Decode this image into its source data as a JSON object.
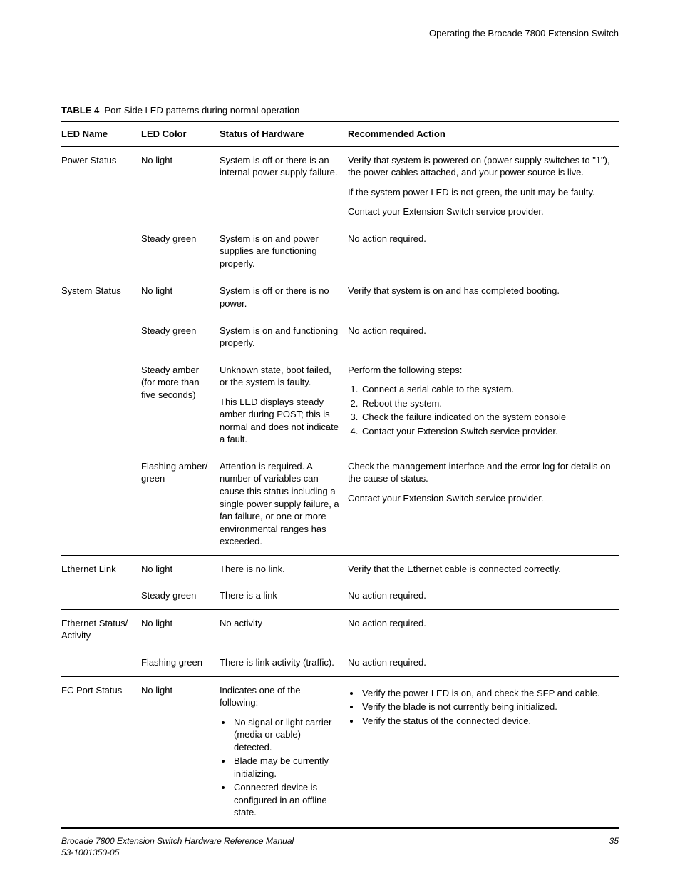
{
  "page": {
    "running_head": "Operating the Brocade 7800 Extension Switch",
    "footer_title": "Brocade 7800 Extension Switch Hardware Reference Manual",
    "footer_doc": "53-1001350-05",
    "page_number": "35"
  },
  "table": {
    "label": "TABLE 4",
    "title": "Port Side LED patterns during normal operation",
    "columns": [
      "LED Name",
      "LED Color",
      "Status of Hardware",
      "Recommended Action"
    ],
    "groups": [
      {
        "led_name": "Power Status",
        "rows": [
          {
            "color": "No light",
            "status_paragraphs": [
              "System is off or there is an internal power supply failure."
            ],
            "action_paragraphs": [
              "Verify that system is powered on (power supply switches to \"1\"), the power cables attached, and your power source is live.",
              "If the system power LED is not green, the unit may be faulty.",
              "Contact your Extension Switch service provider."
            ]
          },
          {
            "color": "Steady green",
            "status_paragraphs": [
              "System is on and power supplies are functioning properly."
            ],
            "action_paragraphs": [
              "No action required."
            ]
          }
        ]
      },
      {
        "led_name": "System Status",
        "rows": [
          {
            "color": "No light",
            "status_paragraphs": [
              "System is off or there is no power."
            ],
            "action_paragraphs": [
              "Verify that system is on and has completed booting."
            ]
          },
          {
            "color": "Steady green",
            "status_paragraphs": [
              "System is on and functioning properly."
            ],
            "action_paragraphs": [
              "No action required."
            ]
          },
          {
            "color": "Steady amber (for more than five seconds)",
            "status_paragraphs": [
              "Unknown state, boot failed, or the system is faulty.",
              "This LED displays steady amber during POST; this is normal and does not indicate a fault."
            ],
            "action_intro": "Perform the following steps:",
            "action_ordered": [
              "Connect a serial cable to the system.",
              "Reboot the system.",
              "Check the failure indicated on the system console",
              "Contact your Extension Switch service provider."
            ]
          },
          {
            "color": "Flashing amber/ green",
            "status_paragraphs": [
              "Attention is required. A number of variables can cause this status including a single power supply failure, a fan failure, or one or more environmental ranges has exceeded."
            ],
            "action_paragraphs": [
              "Check the management interface and the error log for details on the cause of status.",
              "Contact your Extension Switch service provider."
            ]
          }
        ]
      },
      {
        "led_name": "Ethernet Link",
        "rows": [
          {
            "color": "No light",
            "status_paragraphs": [
              "There is no link."
            ],
            "action_paragraphs": [
              "Verify that the Ethernet cable is connected correctly."
            ]
          },
          {
            "color": "Steady green",
            "status_paragraphs": [
              "There is a link"
            ],
            "action_paragraphs": [
              "No action required."
            ]
          }
        ]
      },
      {
        "led_name": "Ethernet Status/ Activity",
        "rows": [
          {
            "color": "No light",
            "status_paragraphs": [
              "No activity"
            ],
            "action_paragraphs": [
              "No action required."
            ]
          },
          {
            "color": "Flashing green",
            "status_paragraphs": [
              "There is link activity (traffic)."
            ],
            "action_paragraphs": [
              "No action required."
            ]
          }
        ]
      },
      {
        "led_name": "FC Port Status",
        "rows": [
          {
            "color": "No light",
            "status_intro": "Indicates one of the following:",
            "status_bullets": [
              "No signal or light carrier (media or cable) detected.",
              "Blade may be currently initializing.",
              "Connected device is configured in an offline state."
            ],
            "action_bullets": [
              "Verify the power LED is on, and check the SFP and cable.",
              "Verify the blade is not currently being initialized.",
              "Verify the status of the connected device."
            ]
          }
        ]
      }
    ]
  },
  "style": {
    "text_color": "#000000",
    "background_color": "#ffffff",
    "rule_color": "#000000",
    "body_fontsize": 13,
    "footer_fontsize": 12
  }
}
